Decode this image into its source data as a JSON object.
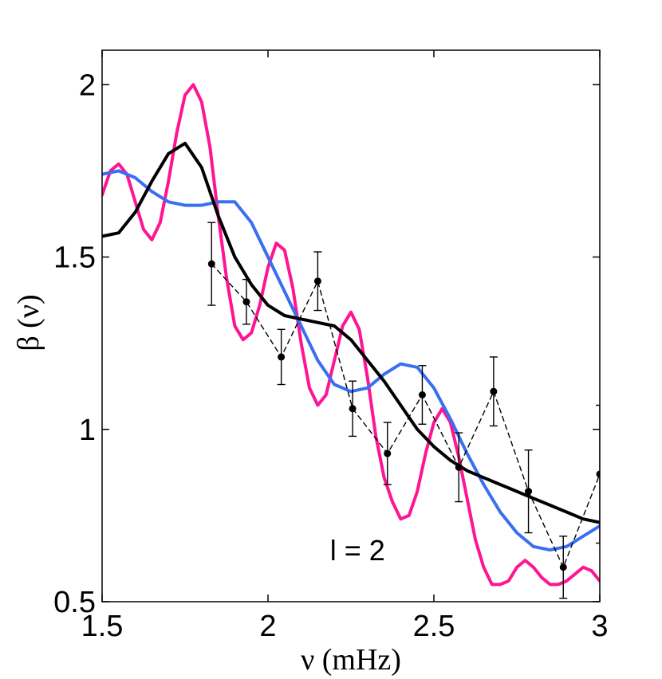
{
  "chart_data": {
    "type": "line",
    "title": "",
    "xlabel": "ν (mHz)",
    "ylabel": "β (ν)",
    "xlim": [
      1.5,
      3.0
    ],
    "ylim": [
      0.5,
      2.1
    ],
    "xticks": [
      1.5,
      2.0,
      2.5,
      3.0
    ],
    "xtick_labels": [
      "1.5",
      "2",
      "2.5",
      "3"
    ],
    "yticks": [
      0.5,
      1.0,
      1.5,
      2.0
    ],
    "ytick_labels": [
      "0.5",
      "1",
      "1.5",
      "2"
    ],
    "grid": false,
    "annotation": "l = 2",
    "series": [
      {
        "name": "magenta-model",
        "color": "#ff1493",
        "style": "solid",
        "x": [
          1.5,
          1.525,
          1.55,
          1.575,
          1.6,
          1.625,
          1.65,
          1.675,
          1.7,
          1.725,
          1.75,
          1.775,
          1.8,
          1.825,
          1.85,
          1.875,
          1.9,
          1.925,
          1.95,
          1.975,
          2.0,
          2.025,
          2.05,
          2.075,
          2.1,
          2.125,
          2.15,
          2.175,
          2.2,
          2.225,
          2.25,
          2.275,
          2.3,
          2.325,
          2.35,
          2.375,
          2.4,
          2.425,
          2.45,
          2.475,
          2.5,
          2.525,
          2.55,
          2.575,
          2.6,
          2.625,
          2.65,
          2.675,
          2.7,
          2.725,
          2.75,
          2.775,
          2.8,
          2.825,
          2.85,
          2.875,
          2.9,
          2.925,
          2.95,
          2.975,
          3.0
        ],
        "y": [
          1.68,
          1.75,
          1.77,
          1.74,
          1.66,
          1.58,
          1.55,
          1.6,
          1.72,
          1.86,
          1.97,
          2.0,
          1.95,
          1.82,
          1.62,
          1.44,
          1.3,
          1.26,
          1.28,
          1.36,
          1.47,
          1.54,
          1.52,
          1.41,
          1.25,
          1.12,
          1.07,
          1.1,
          1.2,
          1.3,
          1.34,
          1.29,
          1.15,
          0.98,
          0.86,
          0.79,
          0.74,
          0.75,
          0.82,
          0.93,
          1.02,
          1.06,
          1.02,
          0.92,
          0.8,
          0.68,
          0.6,
          0.55,
          0.55,
          0.56,
          0.6,
          0.62,
          0.6,
          0.57,
          0.55,
          0.55,
          0.56,
          0.58,
          0.6,
          0.59,
          0.56
        ]
      },
      {
        "name": "blue-model",
        "color": "#3a6ff2",
        "style": "solid",
        "x": [
          1.5,
          1.55,
          1.6,
          1.65,
          1.7,
          1.75,
          1.8,
          1.85,
          1.9,
          1.95,
          2.0,
          2.05,
          2.1,
          2.15,
          2.2,
          2.25,
          2.3,
          2.35,
          2.4,
          2.45,
          2.5,
          2.55,
          2.6,
          2.65,
          2.7,
          2.75,
          2.8,
          2.85,
          2.9,
          2.95,
          3.0
        ],
        "y": [
          1.74,
          1.75,
          1.73,
          1.69,
          1.66,
          1.65,
          1.65,
          1.66,
          1.66,
          1.6,
          1.5,
          1.4,
          1.3,
          1.2,
          1.13,
          1.11,
          1.12,
          1.16,
          1.19,
          1.18,
          1.12,
          1.03,
          0.93,
          0.84,
          0.76,
          0.7,
          0.66,
          0.65,
          0.66,
          0.69,
          0.72
        ]
      },
      {
        "name": "black-model",
        "color": "#000000",
        "style": "solid",
        "x": [
          1.5,
          1.55,
          1.6,
          1.65,
          1.7,
          1.75,
          1.8,
          1.85,
          1.9,
          1.95,
          2.0,
          2.05,
          2.1,
          2.15,
          2.2,
          2.25,
          2.3,
          2.35,
          2.4,
          2.45,
          2.5,
          2.55,
          2.6,
          2.65,
          2.7,
          2.75,
          2.8,
          2.85,
          2.9,
          2.95,
          3.0
        ],
        "y": [
          1.56,
          1.57,
          1.63,
          1.72,
          1.8,
          1.83,
          1.76,
          1.62,
          1.5,
          1.42,
          1.36,
          1.33,
          1.32,
          1.31,
          1.3,
          1.26,
          1.2,
          1.14,
          1.07,
          1.0,
          0.95,
          0.91,
          0.88,
          0.86,
          0.84,
          0.82,
          0.8,
          0.78,
          0.76,
          0.74,
          0.73
        ]
      },
      {
        "name": "observed-data",
        "color": "#000000",
        "style": "dashed",
        "markers": true,
        "x": [
          1.83,
          1.935,
          2.04,
          2.15,
          2.255,
          2.36,
          2.465,
          2.575,
          2.68,
          2.785,
          2.89,
          3.0
        ],
        "y": [
          1.48,
          1.37,
          1.21,
          1.43,
          1.06,
          0.93,
          1.1,
          0.89,
          1.11,
          0.82,
          0.6,
          0.87
        ],
        "yerr": [
          0.12,
          0.065,
          0.08,
          0.085,
          0.08,
          0.09,
          0.085,
          0.1,
          0.1,
          0.12,
          0.09,
          0.2
        ]
      }
    ]
  }
}
